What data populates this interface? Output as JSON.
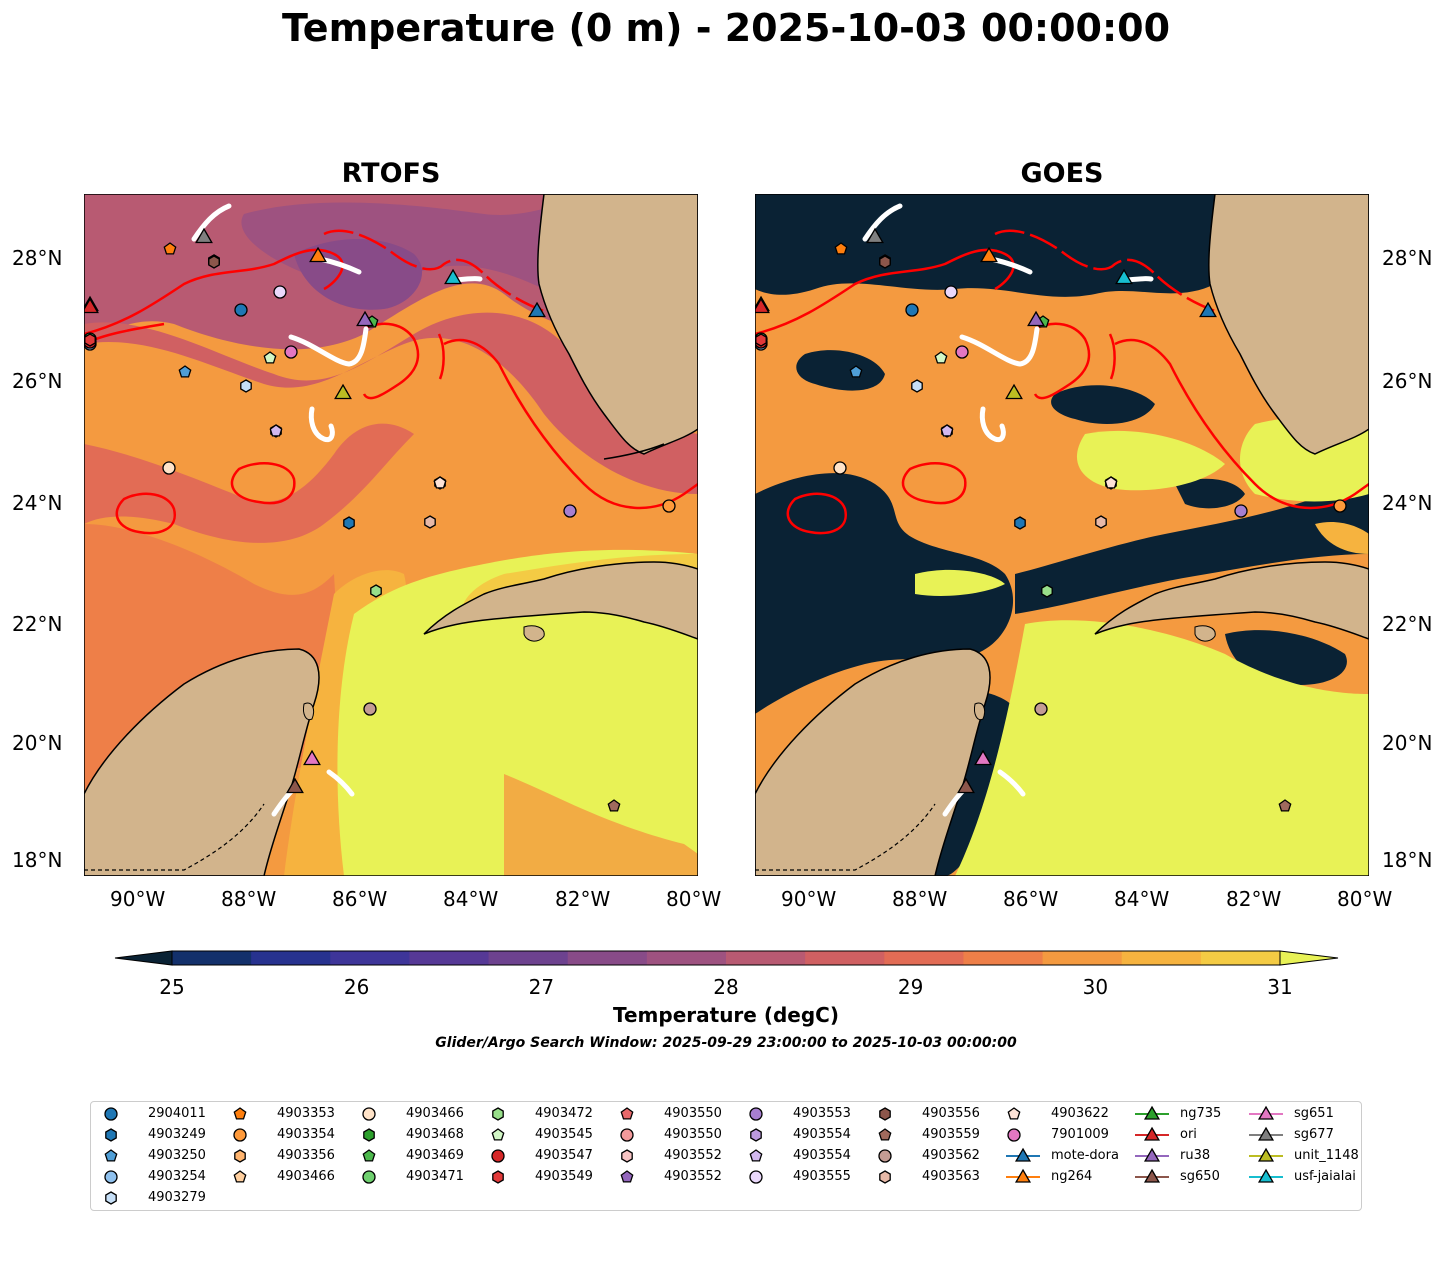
{
  "title": "Temperature (0 m) - 2025-10-03 00:00:00",
  "panels": [
    {
      "title": "RTOFS"
    },
    {
      "title": "GOES"
    }
  ],
  "axes": {
    "lat_labels": [
      "28°N",
      "26°N",
      "24°N",
      "22°N",
      "20°N",
      "18°N"
    ],
    "lon_labels": [
      "90°W",
      "88°W",
      "86°W",
      "84°W",
      "82°W",
      "80°W"
    ],
    "lon_range": [
      -91,
      -80
    ],
    "lat_range": [
      17.75,
      29
    ]
  },
  "colorbar": {
    "ticks": [
      "25",
      "26",
      "27",
      "28",
      "29",
      "30",
      "31"
    ],
    "label": "Temperature (degC)",
    "colors": [
      "#0a2234",
      "#13306b",
      "#27328f",
      "#3e3599",
      "#563996",
      "#6d428f",
      "#884b88",
      "#9e5280",
      "#b85a72",
      "#d06062",
      "#e26c55",
      "#ee7f48",
      "#f49a40",
      "#f6b33f",
      "#f4cb44",
      "#e8f256"
    ]
  },
  "search_window": "Glider/Argo Search Window: 2025-09-29 23:00:00 to 2025-10-03 00:00:00",
  "legend": {
    "columns": [
      [
        {
          "label": "2904011",
          "marker": "circle",
          "color": "#1f77b4"
        },
        {
          "label": "4903249",
          "marker": "hexagon",
          "color": "#1f77b4"
        },
        {
          "label": "4903250",
          "marker": "pentagon",
          "color": "#4f9ed6"
        },
        {
          "label": "4903254",
          "marker": "circle",
          "color": "#8fc1ee"
        },
        {
          "label": "4903279",
          "marker": "hexagon",
          "color": "#c6dff7"
        }
      ],
      [
        {
          "label": "4903353",
          "marker": "pentagon",
          "color": "#ff7f0e"
        },
        {
          "label": "4903354",
          "marker": "circle",
          "color": "#ff9a3a"
        },
        {
          "label": "4903356",
          "marker": "hexagon",
          "color": "#ffb46e"
        },
        {
          "label": "4903466",
          "marker": "pentagon",
          "color": "#ffcf9e"
        }
      ],
      [
        {
          "label": "4903466",
          "marker": "circle",
          "color": "#ffe3c8"
        },
        {
          "label": "4903468",
          "marker": "hexagon",
          "color": "#2ca02c"
        },
        {
          "label": "4903469",
          "marker": "pentagon",
          "color": "#4cb84c"
        },
        {
          "label": "4903471",
          "marker": "circle",
          "color": "#6fd06f"
        }
      ],
      [
        {
          "label": "4903472",
          "marker": "hexagon",
          "color": "#98df8a"
        },
        {
          "label": "4903545",
          "marker": "pentagon",
          "color": "#d2f7c6"
        },
        {
          "label": "4903547",
          "marker": "circle",
          "color": "#d62728"
        },
        {
          "label": "4903549",
          "marker": "hexagon",
          "color": "#e23a3a"
        }
      ],
      [
        {
          "label": "4903550",
          "marker": "pentagon",
          "color": "#e8696b"
        },
        {
          "label": "4903550",
          "marker": "circle",
          "color": "#f29a9b"
        },
        {
          "label": "4903552",
          "marker": "hexagon",
          "color": "#f8c4c4"
        },
        {
          "label": "4903552",
          "marker": "pentagon",
          "color": "#9467bd"
        }
      ],
      [
        {
          "label": "4903553",
          "marker": "circle",
          "color": "#a77fd0"
        },
        {
          "label": "4903554",
          "marker": "hexagon",
          "color": "#bc9ade"
        },
        {
          "label": "4903554",
          "marker": "pentagon",
          "color": "#d2b8ee"
        },
        {
          "label": "4903555",
          "marker": "circle",
          "color": "#ead8fb"
        }
      ],
      [
        {
          "label": "4903556",
          "marker": "hexagon",
          "color": "#8c564b"
        },
        {
          "label": "4903559",
          "marker": "pentagon",
          "color": "#a06a5d"
        },
        {
          "label": "4903562",
          "marker": "circle",
          "color": "#c49c94"
        },
        {
          "label": "4903563",
          "marker": "hexagon",
          "color": "#e7b9a8"
        }
      ],
      [
        {
          "label": "4903622",
          "marker": "pentagon",
          "color": "#fde2d6"
        },
        {
          "label": "7901009",
          "marker": "circle",
          "color": "#e377c2"
        },
        {
          "label": "mote-dora",
          "marker": "triangle-line",
          "color": "#1f77b4"
        },
        {
          "label": "ng264",
          "marker": "triangle-line",
          "color": "#ff7f0e"
        }
      ],
      [
        {
          "label": "ng735",
          "marker": "triangle-line",
          "color": "#2ca02c"
        },
        {
          "label": "ori",
          "marker": "triangle-line",
          "color": "#d62728"
        },
        {
          "label": "ru38",
          "marker": "triangle-line",
          "color": "#9467bd"
        },
        {
          "label": "sg650",
          "marker": "triangle-line",
          "color": "#8c564b"
        }
      ],
      [
        {
          "label": "sg651",
          "marker": "triangle-line",
          "color": "#e377c2"
        },
        {
          "label": "sg677",
          "marker": "triangle-line",
          "color": "#7f7f7f"
        },
        {
          "label": "unit_1148",
          "marker": "triangle-line",
          "color": "#bcbd22"
        },
        {
          "label": "usf-jaialai",
          "marker": "triangle-line",
          "color": "#17becf"
        }
      ]
    ]
  }
}
